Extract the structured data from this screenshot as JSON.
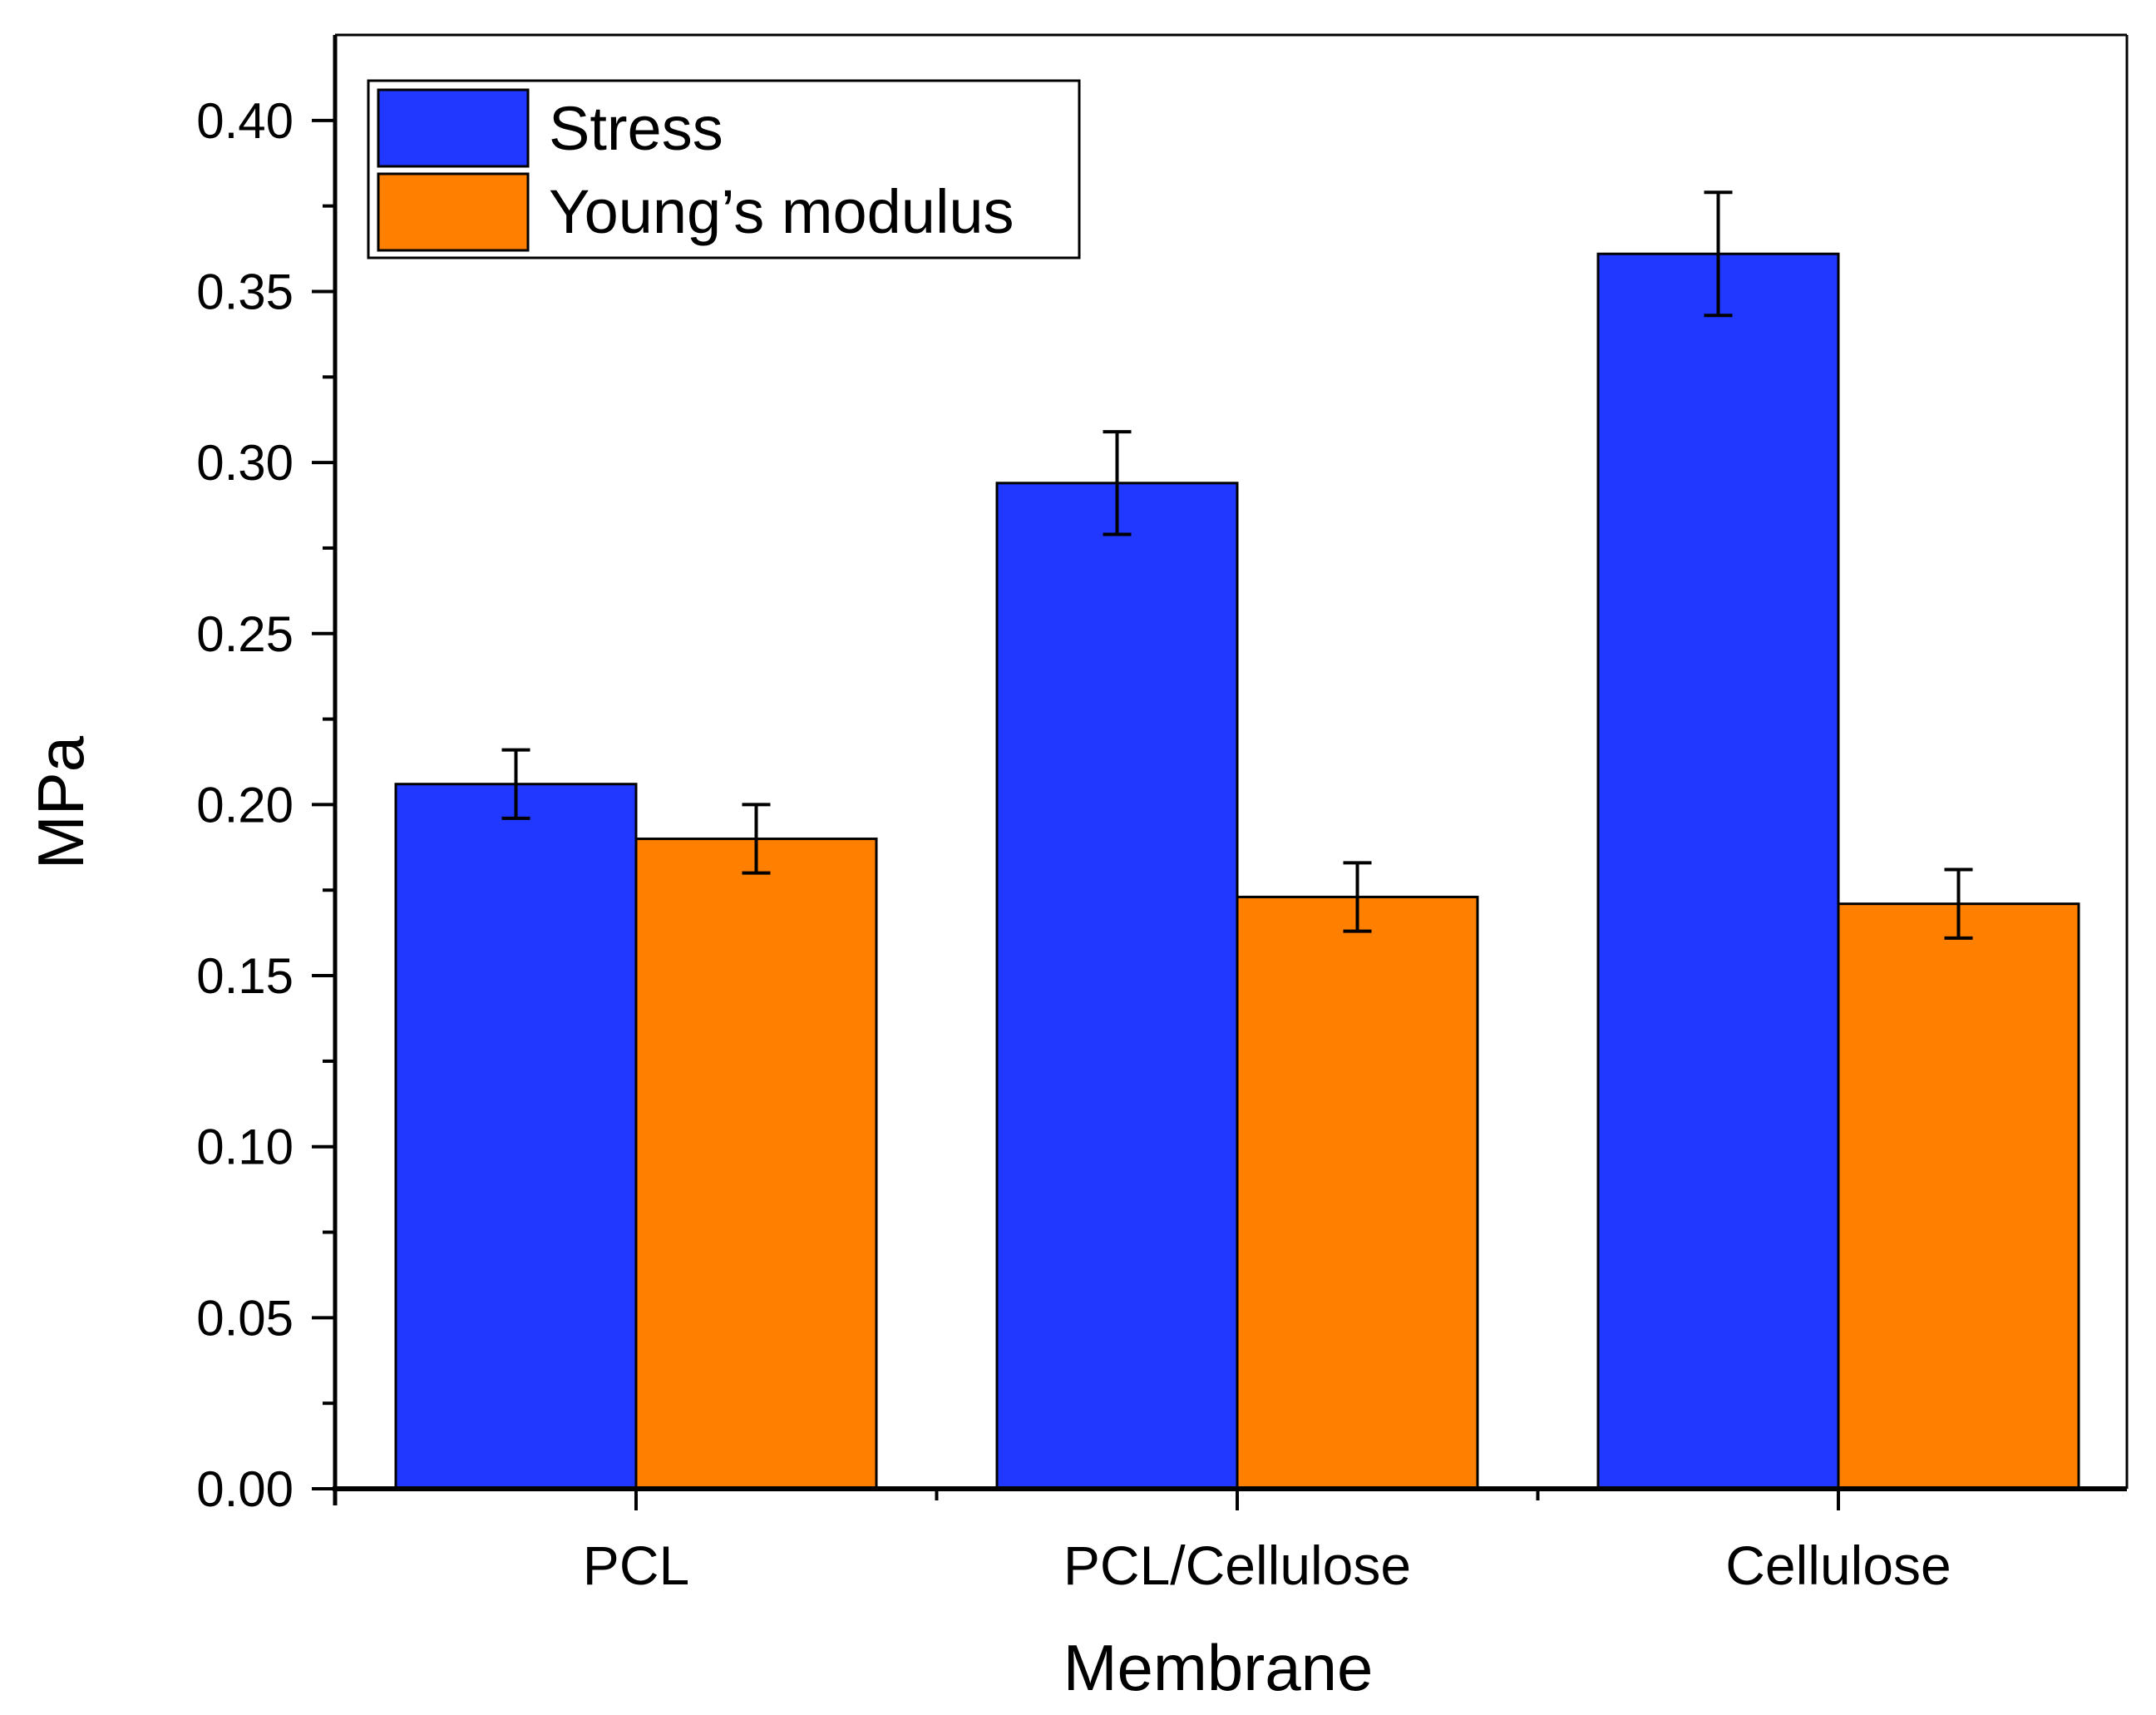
{
  "chart_data": {
    "type": "bar",
    "title": "",
    "xlabel": "Membrane",
    "ylabel": "MPa",
    "categories": [
      "PCL",
      "PCL/Cellulose",
      "Cellulose"
    ],
    "series": [
      {
        "name": "Stress",
        "color": "#2038FF",
        "values": [
          0.206,
          0.294,
          0.361
        ],
        "errors": [
          0.01,
          0.015,
          0.018
        ]
      },
      {
        "name": "Young’s modulus",
        "color": "#FF7F00",
        "values": [
          0.19,
          0.173,
          0.171
        ],
        "errors": [
          0.01,
          0.01,
          0.01
        ]
      }
    ],
    "ylim": [
      0,
      0.425
    ],
    "yticks": [
      "0.00",
      "0.05",
      "0.10",
      "0.15",
      "0.20",
      "0.25",
      "0.30",
      "0.35",
      "0.40"
    ],
    "legend_position": "top-left",
    "grid": false
  }
}
